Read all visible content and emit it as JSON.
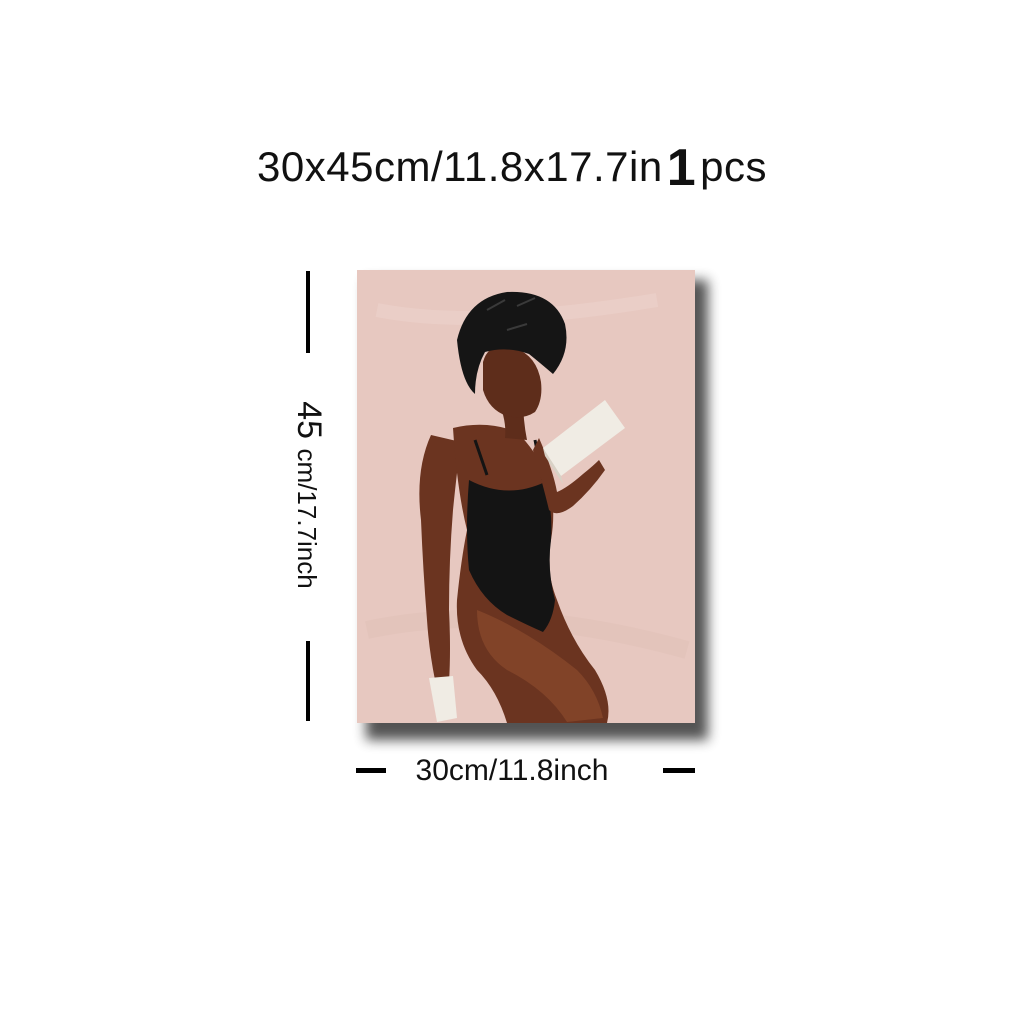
{
  "header": {
    "size_label": "30x45cm/11.8x17.7in",
    "quantity": "1",
    "quantity_unit": "pcs"
  },
  "dimensions": {
    "height_number": "45",
    "height_text": "cm/17.7inch",
    "width_text": "30cm/11.8inch"
  },
  "colors": {
    "canvas_background": "#e7c8c0",
    "skin": "#6b3420",
    "swimsuit": "#141414",
    "headwrap": "#151515",
    "book": "#f0ece4"
  }
}
